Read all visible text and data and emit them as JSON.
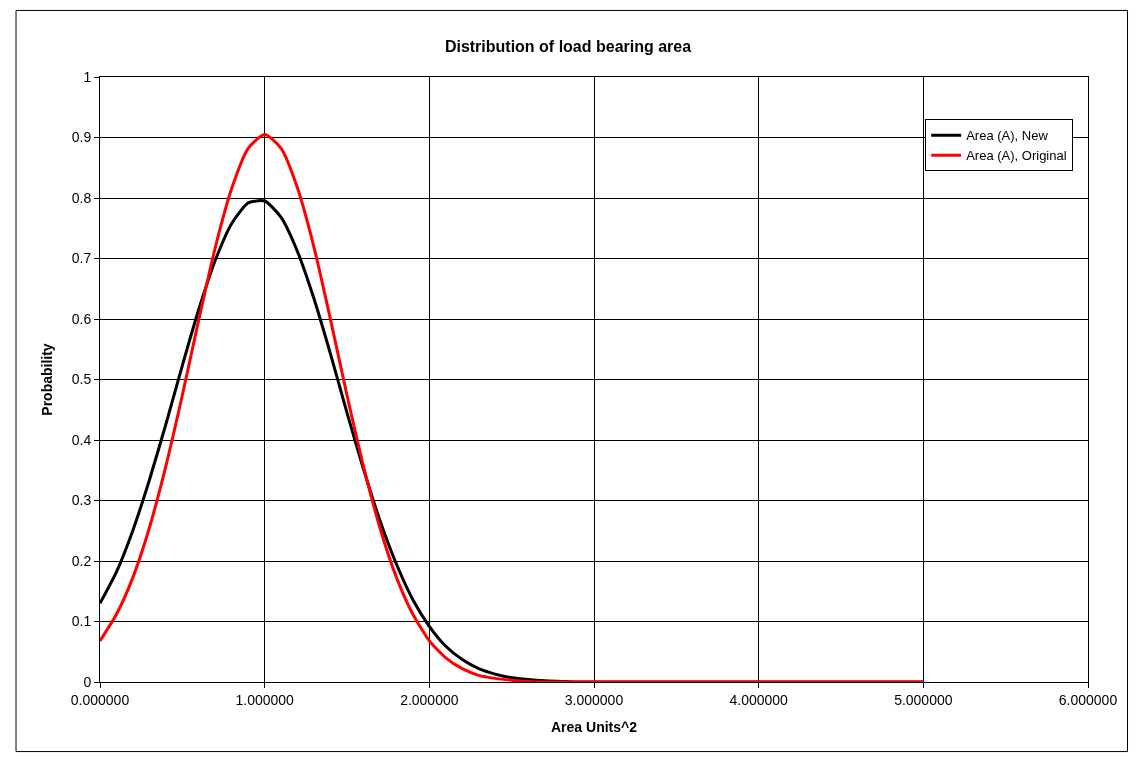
{
  "chart_data": {
    "type": "line",
    "title": "Distribution of load bearing area",
    "xlabel": "Area Units^2",
    "ylabel": "Probability",
    "x": [
      0,
      0.1,
      0.2,
      0.3,
      0.4,
      0.5,
      0.6,
      0.7,
      0.8,
      0.9,
      1.0,
      1.1,
      1.2,
      1.3,
      1.4,
      1.5,
      1.6,
      1.7,
      1.8,
      1.9,
      2.0,
      2.1,
      2.2,
      2.3,
      2.4,
      2.5,
      2.6,
      2.7,
      2.8,
      2.9,
      3.0,
      3.5,
      4.0,
      4.5,
      5.0
    ],
    "series": [
      {
        "name": "Area (A), New",
        "color": "#000000",
        "values": [
          0.13,
          0.182,
          0.251,
          0.334,
          0.426,
          0.523,
          0.616,
          0.697,
          0.758,
          0.792,
          0.795,
          0.768,
          0.711,
          0.633,
          0.542,
          0.445,
          0.352,
          0.267,
          0.195,
          0.136,
          0.092,
          0.059,
          0.037,
          0.022,
          0.013,
          0.007,
          0.004,
          0.002,
          0.001,
          0,
          0,
          0,
          0,
          0,
          0
        ]
      },
      {
        "name": "Area (A), Original",
        "color": "#ff0000",
        "values": [
          0.068,
          0.112,
          0.173,
          0.255,
          0.357,
          0.474,
          0.599,
          0.718,
          0.816,
          0.882,
          0.905,
          0.882,
          0.816,
          0.718,
          0.599,
          0.474,
          0.357,
          0.255,
          0.173,
          0.112,
          0.068,
          0.04,
          0.022,
          0.011,
          0.006,
          0.003,
          0.001,
          0,
          0,
          0,
          0,
          0,
          0,
          0,
          0
        ]
      }
    ],
    "xlim": [
      0,
      6
    ],
    "xticks": [
      {
        "value": 0,
        "label": "0.000000"
      },
      {
        "value": 1,
        "label": "1.000000"
      },
      {
        "value": 2,
        "label": "2.000000"
      },
      {
        "value": 3,
        "label": "3.000000"
      },
      {
        "value": 4,
        "label": "4.000000"
      },
      {
        "value": 5,
        "label": "5.000000"
      },
      {
        "value": 6,
        "label": "6.000000"
      }
    ],
    "ylim": [
      0,
      1
    ],
    "yticks": [
      0,
      0.1,
      0.2,
      0.3,
      0.4,
      0.5,
      0.6,
      0.7,
      0.8,
      0.9,
      1
    ],
    "grid": true,
    "legend": "top right",
    "marker": "none",
    "line_style": "solid"
  }
}
